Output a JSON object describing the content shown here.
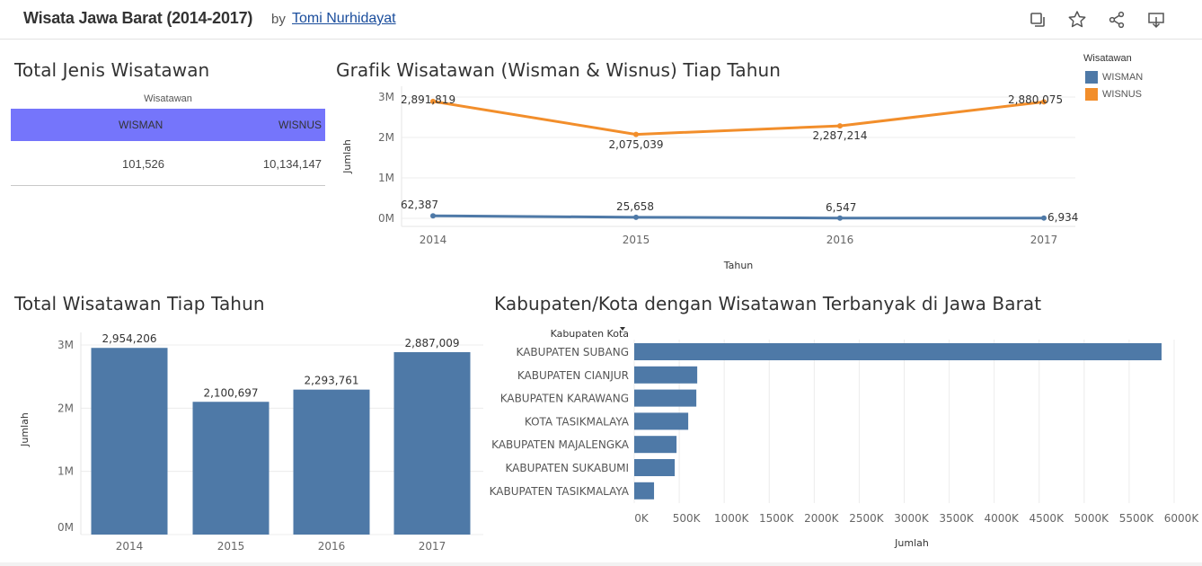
{
  "header": {
    "title": "Wisata Jawa Barat (2014-2017)",
    "by": "by",
    "author": "Tomi Nurhidayat",
    "icons": [
      "duplicate-icon",
      "star-icon",
      "share-icon",
      "download-icon"
    ]
  },
  "crosstab": {
    "title": "Total Jenis Wisatawan",
    "header_label": "Wisatawan",
    "columns": [
      "WISMAN",
      "WISNUS"
    ],
    "values": [
      "101,526",
      "10,134,147"
    ],
    "band_color": "#7575fb"
  },
  "legend": {
    "title": "Wisatawan",
    "items": [
      {
        "label": "WISMAN",
        "color": "#4e79a7"
      },
      {
        "label": "WISNUS",
        "color": "#f28e2b"
      }
    ]
  },
  "chart_data": [
    {
      "type": "line",
      "title": "Grafik Wisatawan (Wisman & Wisnus) Tiap Tahun",
      "xlabel": "Tahun",
      "ylabel": "Jumlah",
      "x": [
        "2014",
        "2015",
        "2016",
        "2017"
      ],
      "y_ticks": [
        "0M",
        "1M",
        "2M",
        "3M"
      ],
      "ylim": [
        0,
        3200000
      ],
      "series": [
        {
          "name": "WISMAN",
          "color": "#4e79a7",
          "values": [
            62387,
            25658,
            6547,
            6934
          ],
          "labels": [
            "62,387",
            "25,658",
            "6,547",
            "6,934"
          ]
        },
        {
          "name": "WISNUS",
          "color": "#f28e2b",
          "values": [
            2891819,
            2075039,
            2287214,
            2880075
          ],
          "labels": [
            "2,891,819",
            "2,075,039",
            "2,287,214",
            "2,880,075"
          ]
        }
      ]
    },
    {
      "type": "bar",
      "title": "Total Wisatawan Tiap Tahun",
      "ylabel": "Jumlah",
      "categories": [
        "2014",
        "2015",
        "2016",
        "2017"
      ],
      "values": [
        2954206,
        2100697,
        2293761,
        2887009
      ],
      "labels": [
        "2,954,206",
        "2,100,697",
        "2,293,761",
        "2,887,009"
      ],
      "y_ticks": [
        "0M",
        "1M",
        "2M",
        "3M"
      ],
      "ylim": [
        0,
        3000000
      ],
      "color": "#4e79a7"
    },
    {
      "type": "bar",
      "orientation": "horizontal",
      "title": "Kabupaten/Kota dengan Wisatawan Terbanyak di Jawa Barat",
      "category_header": "Kabupaten Kota",
      "xlabel": "Jumlah",
      "categories": [
        "KABUPATEN SUBANG",
        "KABUPATEN CIANJUR",
        "KABUPATEN KARAWANG",
        "KOTA TASIKMALAYA",
        "KABUPATEN MAJALENGKA",
        "KABUPATEN SUKABUMI",
        "KABUPATEN TASIKMALAYA"
      ],
      "values": [
        5860000,
        700000,
        690000,
        600000,
        470000,
        450000,
        220000
      ],
      "x_ticks": [
        "0K",
        "500K",
        "1000K",
        "1500K",
        "2000K",
        "2500K",
        "3000K",
        "3500K",
        "4000K",
        "4500K",
        "5000K",
        "5500K",
        "6000K"
      ],
      "xlim": [
        0,
        6000000
      ],
      "color": "#4e79a7"
    }
  ]
}
